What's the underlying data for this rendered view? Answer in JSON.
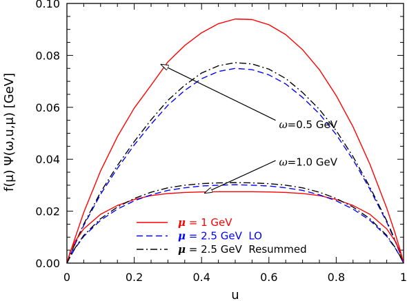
{
  "chart_data": {
    "type": "line",
    "title": "",
    "xlabel": "u",
    "ylabel": "f(μ)  Ψ(ω,u,μ)  [GeV]",
    "xlim": [
      0,
      1
    ],
    "ylim": [
      0,
      0.1
    ],
    "x_ticks": [
      0,
      0.2,
      0.4,
      0.6,
      0.8,
      1
    ],
    "x_tick_labels": [
      "0",
      "0.2",
      "0.4",
      "0.6",
      "0.8",
      "1"
    ],
    "y_ticks": [
      0,
      0.02,
      0.04,
      0.06,
      0.08,
      0.1
    ],
    "y_tick_labels": [
      "0.00",
      "0.02",
      "0.04",
      "0.06",
      "0.08",
      "0.10"
    ],
    "grid": false,
    "legend_position": "bottom-center",
    "x": [
      0,
      0.01,
      0.025,
      0.05,
      0.1,
      0.15,
      0.2,
      0.25,
      0.3,
      0.35,
      0.4,
      0.45,
      0.5,
      0.55,
      0.6,
      0.65,
      0.7,
      0.75,
      0.8,
      0.85,
      0.9,
      0.95,
      0.975,
      0.99,
      1
    ],
    "series": [
      {
        "name": "μ = 1 GeV",
        "group": "ω=0.5 GeV",
        "color": "#ff0000",
        "dash": "solid",
        "values": [
          0,
          0.0042,
          0.01,
          0.0195,
          0.0355,
          0.0487,
          0.0597,
          0.0685,
          0.0775,
          0.0838,
          0.0887,
          0.0922,
          0.094,
          0.0938,
          0.0918,
          0.088,
          0.0822,
          0.0745,
          0.0645,
          0.0525,
          0.0381,
          0.0212,
          0.0115,
          0.005,
          0
        ]
      },
      {
        "name": "μ = 2.5 GeV  LO",
        "group": "ω=0.5 GeV",
        "color": "#0000ff",
        "dash": "dashed",
        "values": [
          0,
          0.003,
          0.0075,
          0.0145,
          0.0265,
          0.0365,
          0.0455,
          0.0535,
          0.0608,
          0.0665,
          0.071,
          0.0738,
          0.075,
          0.0745,
          0.0725,
          0.069,
          0.0638,
          0.0575,
          0.0495,
          0.0398,
          0.0285,
          0.0158,
          0.0085,
          0.0037,
          0
        ]
      },
      {
        "name": "μ = 2.5 GeV  Resummed",
        "group": "ω=0.5 GeV",
        "color": "#000000",
        "dash": "dashdot",
        "values": [
          0,
          0.0031,
          0.0078,
          0.015,
          0.0273,
          0.0376,
          0.0468,
          0.0552,
          0.0627,
          0.0685,
          0.0732,
          0.076,
          0.0772,
          0.0767,
          0.0747,
          0.0711,
          0.0657,
          0.0592,
          0.051,
          0.041,
          0.0293,
          0.0163,
          0.0088,
          0.0038,
          0
        ]
      },
      {
        "name": "μ = 1 GeV",
        "group": "ω=1.0 GeV",
        "color": "#ff0000",
        "dash": "solid",
        "values": [
          0,
          0.0045,
          0.0085,
          0.0132,
          0.0188,
          0.0222,
          0.0245,
          0.026,
          0.0268,
          0.0272,
          0.0274,
          0.0275,
          0.0275,
          0.0275,
          0.0274,
          0.0272,
          0.0268,
          0.026,
          0.0245,
          0.0222,
          0.0188,
          0.0132,
          0.0085,
          0.0045,
          0
        ]
      },
      {
        "name": "μ = 2.5 GeV  LO",
        "group": "ω=1.0 GeV",
        "color": "#0000ff",
        "dash": "dashed",
        "values": [
          0,
          0.0025,
          0.0058,
          0.0103,
          0.0165,
          0.0208,
          0.024,
          0.0263,
          0.028,
          0.029,
          0.0297,
          0.03,
          0.0302,
          0.03,
          0.0297,
          0.029,
          0.028,
          0.0263,
          0.024,
          0.0208,
          0.0165,
          0.0103,
          0.0058,
          0.0025,
          0
        ]
      },
      {
        "name": "μ = 2.5 GeV  Resummed",
        "group": "ω=1.0 GeV",
        "color": "#000000",
        "dash": "dashdot",
        "values": [
          0,
          0.0026,
          0.006,
          0.0107,
          0.0171,
          0.0216,
          0.0249,
          0.0273,
          0.029,
          0.03,
          0.0306,
          0.0309,
          0.031,
          0.0309,
          0.0306,
          0.03,
          0.029,
          0.0273,
          0.0249,
          0.0216,
          0.0171,
          0.0107,
          0.006,
          0.0026,
          0
        ]
      }
    ],
    "annotations": [
      {
        "text_prefix": "ω",
        "text_rest": "=0.5 GeV",
        "text_x": 0.63,
        "text_y": 0.052,
        "arrow_from": [
          0.62,
          0.055
        ],
        "arrow_to": [
          0.28,
          0.0765
        ]
      },
      {
        "text_prefix": "ω",
        "text_rest": "=1.0 GeV",
        "text_x": 0.63,
        "text_y": 0.0375,
        "arrow_from": [
          0.62,
          0.0395
        ],
        "arrow_to": [
          0.41,
          0.027
        ]
      }
    ],
    "legend": [
      {
        "label_symbol": "μ",
        "label_rest": " = 1 GeV",
        "color": "#ff0000",
        "dash": "solid"
      },
      {
        "label_symbol": "μ",
        "label_rest": " = 2.5 GeV  LO",
        "color": "#0000ff",
        "dash": "dashed"
      },
      {
        "label_symbol": "μ",
        "label_rest": " = 2.5 GeV  Resummed",
        "color": "#000000",
        "dash": "dashdot"
      }
    ]
  }
}
